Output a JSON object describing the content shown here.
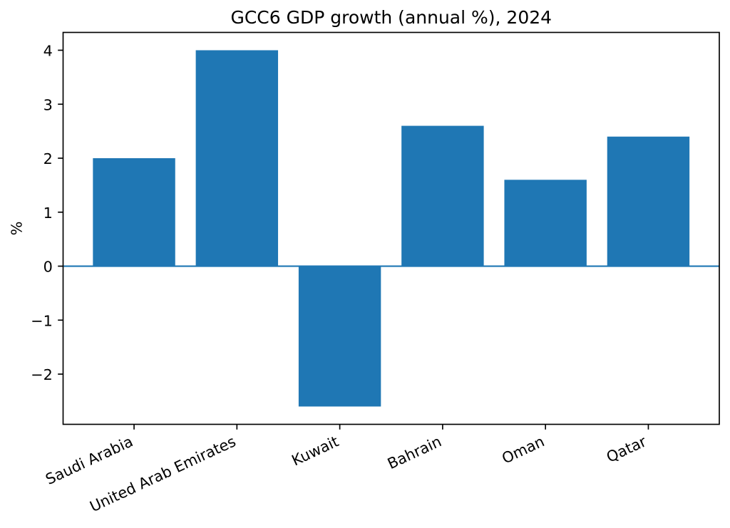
{
  "chart_data": {
    "type": "bar",
    "title": "GCC6 GDP growth (annual %), 2024",
    "xlabel": "",
    "ylabel": "%",
    "categories": [
      "Saudi Arabia",
      "United Arab Emirates",
      "Kuwait",
      "Bahrain",
      "Oman",
      "Qatar"
    ],
    "values": [
      2.0,
      4.0,
      -2.6,
      2.6,
      1.6,
      2.4
    ],
    "bar_width": 0.8,
    "xlim": [
      -0.69,
      5.69
    ],
    "ylim": [
      -2.93,
      4.33
    ],
    "ytick_values": [
      -2,
      -1,
      0,
      1,
      2,
      3,
      4
    ],
    "ytick_labels": [
      "−2",
      "−1",
      "0",
      "1",
      "2",
      "3",
      "4"
    ],
    "x_tick_label_rotation_deg": 25,
    "grid": false,
    "legend": null,
    "zero_line": true,
    "colors": {
      "bar": "#1f77b4",
      "zero_line": "#1f77b4",
      "axis": "#000000",
      "text": "#000000",
      "background": "#ffffff"
    }
  }
}
